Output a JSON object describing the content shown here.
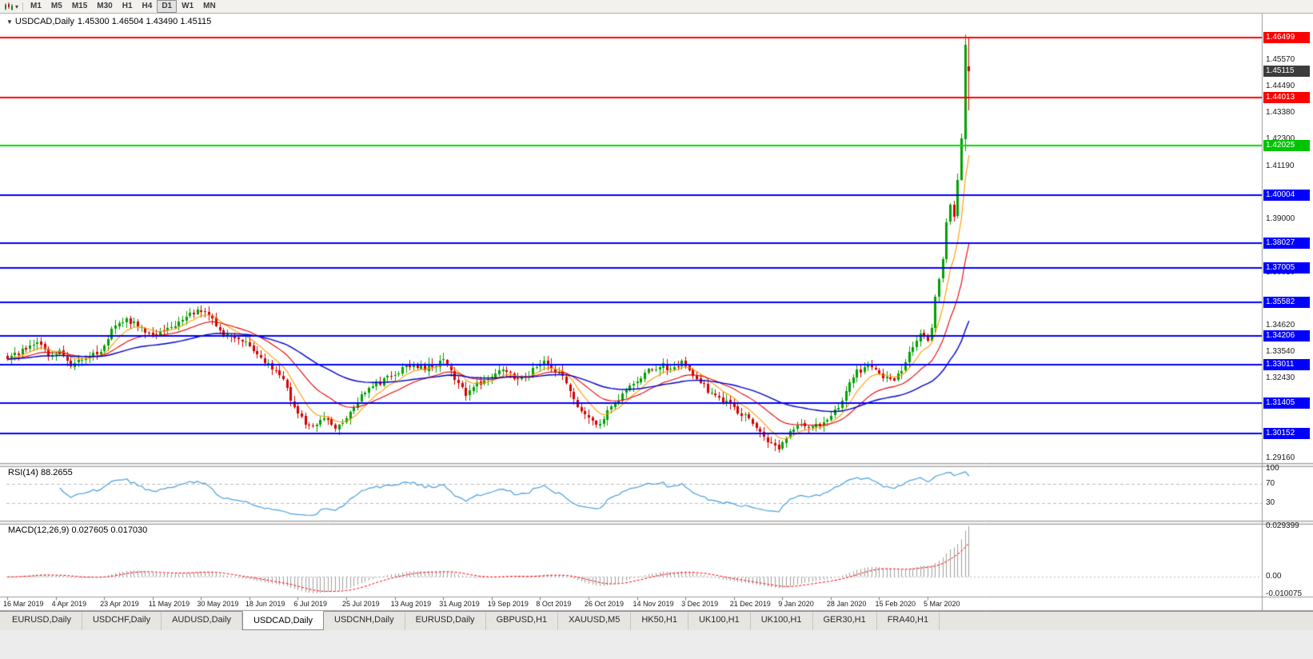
{
  "toolbar": {
    "chart_icon": "candlestick-chart-icon",
    "caret_icon": "▾",
    "timeframes": [
      {
        "label": "M1",
        "active": false
      },
      {
        "label": "M5",
        "active": false
      },
      {
        "label": "M15",
        "active": false
      },
      {
        "label": "M30",
        "active": false
      },
      {
        "label": "H1",
        "active": false
      },
      {
        "label": "H4",
        "active": false
      },
      {
        "label": "D1",
        "active": true
      },
      {
        "label": "W1",
        "active": false
      },
      {
        "label": "MN",
        "active": false
      }
    ]
  },
  "chart": {
    "collapse_icon": "▼",
    "title_symbol": "USDCAD,Daily",
    "title_ohlc": "1.45300 1.46504 1.43490 1.45115"
  },
  "price_axis": {
    "labels": [
      {
        "text": "1.45570",
        "price": 1.4557
      },
      {
        "text": "1.44490",
        "price": 1.4449
      },
      {
        "text": "1.43380",
        "price": 1.4338
      },
      {
        "text": "1.42300",
        "price": 1.423
      },
      {
        "text": "1.41190",
        "price": 1.4119
      },
      {
        "text": "1.39000",
        "price": 1.39
      },
      {
        "text": "1.36810",
        "price": 1.3681
      },
      {
        "text": "1.34620",
        "price": 1.3462
      },
      {
        "text": "1.33540",
        "price": 1.3354
      },
      {
        "text": "1.32430",
        "price": 1.3243
      },
      {
        "text": "1.29160",
        "price": 1.2916
      }
    ],
    "badges": [
      {
        "text": "1.46499",
        "price": 1.46499,
        "color": "#FF0000"
      },
      {
        "text": "1.45115",
        "price": 1.45115,
        "color": "#3C3C3C"
      },
      {
        "text": "1.44013",
        "price": 1.44013,
        "color": "#FF0000"
      },
      {
        "text": "1.42025",
        "price": 1.42025,
        "color": "#00C400"
      },
      {
        "text": "1.40004",
        "price": 1.40004,
        "color": "#0000FF"
      },
      {
        "text": "1.38027",
        "price": 1.38027,
        "color": "#0000FF"
      },
      {
        "text": "1.37005",
        "price": 1.37005,
        "color": "#0000FF"
      },
      {
        "text": "1.35582",
        "price": 1.35582,
        "color": "#0000FF"
      },
      {
        "text": "1.34206",
        "price": 1.34206,
        "color": "#0000FF"
      },
      {
        "text": "1.33011",
        "price": 1.33011,
        "color": "#0000FF"
      },
      {
        "text": "1.31405",
        "price": 1.31405,
        "color": "#0000FF"
      },
      {
        "text": "1.30152",
        "price": 1.30152,
        "color": "#0000FF"
      }
    ]
  },
  "levels": [
    {
      "price": 1.46499,
      "color": "#FF0000"
    },
    {
      "price": 1.44013,
      "color": "#FF0000"
    },
    {
      "price": 1.42025,
      "color": "#00DD00"
    },
    {
      "price": 1.40004,
      "color": "#0000FF"
    },
    {
      "price": 1.38027,
      "color": "#0000FF"
    },
    {
      "price": 1.37005,
      "color": "#0000FF"
    },
    {
      "price": 1.35582,
      "color": "#0000FF"
    },
    {
      "price": 1.34206,
      "color": "#0000FF"
    },
    {
      "price": 1.33011,
      "color": "#0000FF"
    },
    {
      "price": 1.31405,
      "color": "#0000FF"
    },
    {
      "price": 1.30152,
      "color": "#0000FF"
    }
  ],
  "time_axis": {
    "labels": [
      {
        "text": "16 Mar 2019",
        "index": 0
      },
      {
        "text": "4 Apr 2019",
        "index": 13
      },
      {
        "text": "23 Apr 2019",
        "index": 26
      },
      {
        "text": "11 May 2019",
        "index": 39
      },
      {
        "text": "30 May 2019",
        "index": 52
      },
      {
        "text": "18 Jun 2019",
        "index": 65
      },
      {
        "text": "6 Jul 2019",
        "index": 78
      },
      {
        "text": "25 Jul 2019",
        "index": 91
      },
      {
        "text": "13 Aug 2019",
        "index": 104
      },
      {
        "text": "31 Aug 2019",
        "index": 117
      },
      {
        "text": "19 Sep 2019",
        "index": 130
      },
      {
        "text": "8 Oct 2019",
        "index": 143
      },
      {
        "text": "26 Oct 2019",
        "index": 156
      },
      {
        "text": "14 Nov 2019",
        "index": 169
      },
      {
        "text": "3 Dec 2019",
        "index": 182
      },
      {
        "text": "21 Dec 2019",
        "index": 195
      },
      {
        "text": "9 Jan 2020",
        "index": 208
      },
      {
        "text": "28 Jan 2020",
        "index": 221
      },
      {
        "text": "15 Feb 2020",
        "index": 234
      },
      {
        "text": "5 Mar 2020",
        "index": 247
      }
    ]
  },
  "rsi": {
    "label": "RSI(14) 88.2655",
    "color": "#4AA0DC",
    "axis": [
      {
        "text": "100",
        "value": 100
      },
      {
        "text": "70",
        "value": 70
      },
      {
        "text": "30",
        "value": 30
      }
    ],
    "dashed_levels": [
      70,
      30
    ]
  },
  "macd": {
    "label": "MACD(12,26,9) 0.027605 0.017030",
    "histogram_color": "#A0A0A0",
    "signal_color": "#FF0000",
    "axis": [
      {
        "text": "0.029399",
        "value": 0.029399
      },
      {
        "text": "0.00",
        "value": 0
      },
      {
        "text": "-0.010075",
        "value": -0.010075
      }
    ]
  },
  "tabs": [
    {
      "label": "EURUSD,Daily",
      "active": false
    },
    {
      "label": "USDCHF,Daily",
      "active": false
    },
    {
      "label": "AUDUSD,Daily",
      "active": false
    },
    {
      "label": "USDCAD,Daily",
      "active": true
    },
    {
      "label": "USDCNH,Daily",
      "active": false
    },
    {
      "label": "EURUSD,Daily",
      "active": false
    },
    {
      "label": "GBPUSD,H1",
      "active": false
    },
    {
      "label": "XAUUSD,M5",
      "active": false
    },
    {
      "label": "HK50,H1",
      "active": false
    },
    {
      "label": "UK100,H1",
      "active": false
    },
    {
      "label": "UK100,H1",
      "active": false
    },
    {
      "label": "GER30,H1",
      "active": false
    },
    {
      "label": "FRA40,H1",
      "active": false
    }
  ],
  "chart_data": {
    "type": "candlestick",
    "symbol": "USDCAD",
    "timeframe": "Daily",
    "ohlc_current": {
      "open": 1.453,
      "high": 1.46504,
      "low": 1.4349,
      "close": 1.45115
    },
    "price_range": {
      "top": 1.4745,
      "bottom": 1.28947
    },
    "candle_count": 259,
    "up_color": "#00A000",
    "down_color": "#D40000",
    "close_anchors": [
      [
        0,
        1.333
      ],
      [
        4,
        1.336
      ],
      [
        8,
        1.3395
      ],
      [
        11,
        1.3345
      ],
      [
        14,
        1.3352
      ],
      [
        17,
        1.3305
      ],
      [
        21,
        1.333
      ],
      [
        25,
        1.335
      ],
      [
        28,
        1.345
      ],
      [
        32,
        1.349
      ],
      [
        36,
        1.3445
      ],
      [
        40,
        1.3428
      ],
      [
        44,
        1.3455
      ],
      [
        48,
        1.35
      ],
      [
        52,
        1.353
      ],
      [
        55,
        1.349
      ],
      [
        58,
        1.3435
      ],
      [
        62,
        1.3405
      ],
      [
        65,
        1.338
      ],
      [
        68,
        1.332
      ],
      [
        71,
        1.3285
      ],
      [
        74,
        1.323
      ],
      [
        77,
        1.3125
      ],
      [
        80,
        1.3065
      ],
      [
        83,
        1.3055
      ],
      [
        86,
        1.3078
      ],
      [
        88,
        1.3042
      ],
      [
        91,
        1.307
      ],
      [
        94,
        1.3155
      ],
      [
        97,
        1.3205
      ],
      [
        100,
        1.3228
      ],
      [
        104,
        1.3258
      ],
      [
        107,
        1.3305
      ],
      [
        110,
        1.3285
      ],
      [
        114,
        1.3295
      ],
      [
        117,
        1.3312
      ],
      [
        120,
        1.3245
      ],
      [
        123,
        1.3185
      ],
      [
        126,
        1.322
      ],
      [
        130,
        1.3262
      ],
      [
        133,
        1.329
      ],
      [
        136,
        1.3245
      ],
      [
        140,
        1.3255
      ],
      [
        143,
        1.3312
      ],
      [
        146,
        1.329
      ],
      [
        149,
        1.3245
      ],
      [
        152,
        1.315
      ],
      [
        156,
        1.3075
      ],
      [
        159,
        1.3055
      ],
      [
        162,
        1.313
      ],
      [
        165,
        1.318
      ],
      [
        169,
        1.324
      ],
      [
        172,
        1.3272
      ],
      [
        175,
        1.33
      ],
      [
        178,
        1.3285
      ],
      [
        181,
        1.3308
      ],
      [
        185,
        1.324
      ],
      [
        189,
        1.3178
      ],
      [
        193,
        1.3148
      ],
      [
        196,
        1.3108
      ],
      [
        199,
        1.3075
      ],
      [
        202,
        1.3022
      ],
      [
        205,
        1.2968
      ],
      [
        207,
        1.2958
      ],
      [
        209,
        1.3005
      ],
      [
        212,
        1.3055
      ],
      [
        216,
        1.3045
      ],
      [
        219,
        1.3062
      ],
      [
        222,
        1.311
      ],
      [
        225,
        1.319
      ],
      [
        228,
        1.327
      ],
      [
        231,
        1.3298
      ],
      [
        234,
        1.3255
      ],
      [
        237,
        1.3232
      ],
      [
        240,
        1.3278
      ],
      [
        243,
        1.3372
      ],
      [
        245,
        1.3428
      ],
      [
        247,
        1.34
      ],
      [
        248,
        1.3452
      ],
      [
        249,
        1.358
      ],
      [
        250,
        1.3658
      ],
      [
        251,
        1.374
      ],
      [
        252,
        1.3888
      ],
      [
        253,
        1.3958
      ],
      [
        254,
        1.3912
      ],
      [
        255,
        1.406
      ],
      [
        256,
        1.423
      ],
      [
        257,
        1.462
      ],
      [
        258,
        1.45115
      ]
    ],
    "last_candles": [
      {
        "o": 1.4232,
        "h": 1.4662,
        "l": 1.418,
        "c": 1.462
      },
      {
        "o": 1.453,
        "h": 1.46504,
        "l": 1.4349,
        "c": 1.45115
      }
    ],
    "ma": [
      {
        "period": 8,
        "color": "#FF9900",
        "type": "ema"
      },
      {
        "period": 21,
        "color": "#E60000",
        "type": "ema"
      },
      {
        "period": 55,
        "color": "#0000CC",
        "type": "ema"
      }
    ],
    "indicators": {
      "rsi": {
        "period": 14,
        "value": 88.2655
      },
      "macd": {
        "fast": 12,
        "slow": 26,
        "signal": 9,
        "value": 0.027605,
        "signal_value": 0.01703
      }
    }
  }
}
